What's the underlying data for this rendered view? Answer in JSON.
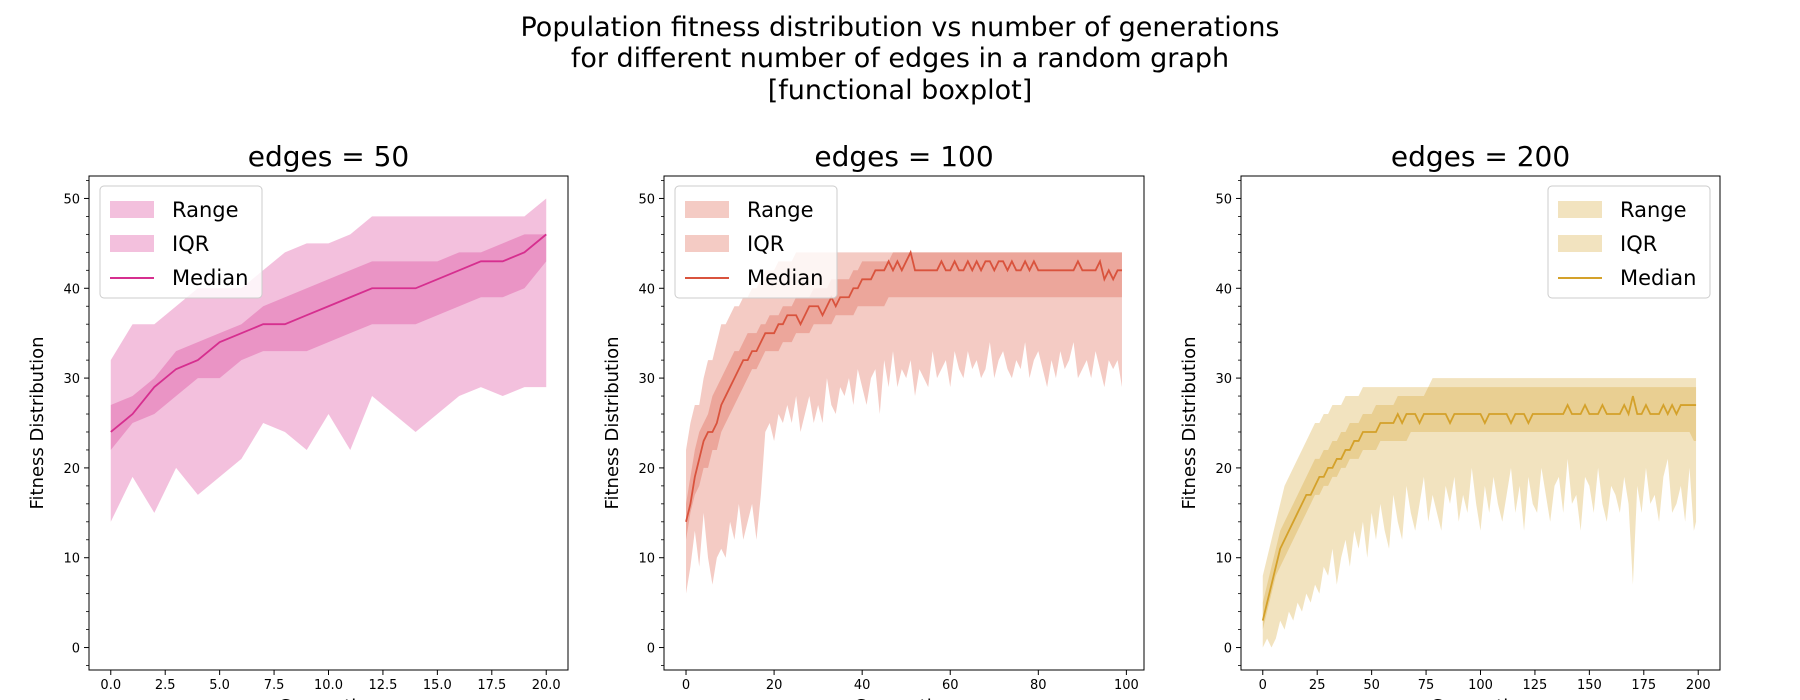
{
  "figure": {
    "suptitle_lines": [
      "Population fitness distribution vs number of generations",
      "for different number of edges in a random graph",
      "[functional boxplot]"
    ]
  },
  "chart_data": [
    {
      "type": "area",
      "title": "edges = 50",
      "xlabel": "Generation",
      "ylabel": "Fitness Distribution",
      "xlim": [
        -1,
        21
      ],
      "ylim": [
        -2.5,
        52.5
      ],
      "xticks": [
        0.0,
        2.5,
        5.0,
        7.5,
        10.0,
        12.5,
        15.0,
        17.5,
        20.0
      ],
      "xtick_labels": [
        "0.0",
        "2.5",
        "5.0",
        "7.5",
        "10.0",
        "12.5",
        "15.0",
        "17.5",
        "20.0"
      ],
      "yticks": [
        0,
        10,
        20,
        30,
        40,
        50
      ],
      "legend": {
        "position": "top-left",
        "entries": [
          "Range",
          "IQR",
          "Median"
        ]
      },
      "color": "#d62f8f",
      "x": [
        0,
        1,
        2,
        3,
        4,
        5,
        6,
        7,
        8,
        9,
        10,
        11,
        12,
        13,
        14,
        15,
        16,
        17,
        18,
        19,
        20
      ],
      "range_min": [
        14,
        19,
        15,
        20,
        17,
        19,
        21,
        25,
        24,
        22,
        26,
        22,
        28,
        26,
        24,
        26,
        28,
        29,
        28,
        29,
        29
      ],
      "range_max": [
        32,
        36,
        36,
        38,
        40,
        40,
        40,
        42,
        44,
        45,
        45,
        46,
        48,
        48,
        48,
        48,
        48,
        48,
        48,
        48,
        50
      ],
      "iqr_low": [
        22,
        25,
        26,
        28,
        30,
        30,
        32,
        33,
        33,
        33,
        34,
        35,
        36,
        36,
        36,
        37,
        38,
        39,
        39,
        40,
        43
      ],
      "iqr_high": [
        27,
        28,
        30,
        33,
        34,
        35,
        36,
        38,
        39,
        40,
        41,
        42,
        43,
        43,
        43,
        43,
        44,
        44,
        45,
        46,
        46
      ],
      "median": [
        24,
        26,
        29,
        31,
        32,
        34,
        35,
        36,
        36,
        37,
        38,
        39,
        40,
        40,
        40,
        41,
        42,
        43,
        43,
        44,
        46
      ]
    },
    {
      "type": "area",
      "title": "edges = 100",
      "xlabel": "Generation",
      "ylabel": "Fitness Distribution",
      "xlim": [
        -5,
        104
      ],
      "ylim": [
        -2.5,
        52.5
      ],
      "xticks": [
        0,
        20,
        40,
        60,
        80,
        100
      ],
      "xtick_labels": [
        "0",
        "20",
        "40",
        "60",
        "80",
        "100"
      ],
      "yticks": [
        0,
        10,
        20,
        30,
        40,
        50
      ],
      "legend": {
        "position": "top-left",
        "entries": [
          "Range",
          "IQR",
          "Median"
        ]
      },
      "color": "#d9533d",
      "x": [
        0,
        1,
        2,
        3,
        4,
        5,
        6,
        7,
        8,
        9,
        10,
        11,
        12,
        13,
        14,
        15,
        16,
        17,
        18,
        19,
        20,
        21,
        22,
        23,
        24,
        25,
        26,
        27,
        28,
        29,
        30,
        31,
        32,
        33,
        34,
        35,
        36,
        37,
        38,
        39,
        40,
        41,
        42,
        43,
        44,
        45,
        46,
        47,
        48,
        49,
        50,
        51,
        52,
        53,
        54,
        55,
        56,
        57,
        58,
        59,
        60,
        61,
        62,
        63,
        64,
        65,
        66,
        67,
        68,
        69,
        70,
        71,
        72,
        73,
        74,
        75,
        76,
        77,
        78,
        79,
        80,
        81,
        82,
        83,
        84,
        85,
        86,
        87,
        88,
        89,
        90,
        91,
        92,
        93,
        94,
        95,
        96,
        97,
        98,
        99
      ],
      "range_min": [
        6,
        9,
        13,
        9,
        15,
        10,
        7,
        10,
        11,
        10,
        14,
        12,
        16,
        12,
        14,
        16,
        12,
        17,
        24,
        25,
        23,
        26,
        25,
        27,
        25,
        28,
        24,
        26,
        28,
        25,
        27,
        25,
        30,
        27,
        26,
        29,
        28,
        30,
        27,
        31,
        29,
        27,
        30,
        31,
        26,
        32,
        29,
        33,
        29,
        31,
        30,
        32,
        28,
        31,
        30,
        29,
        33,
        30,
        31,
        32,
        29,
        33,
        31,
        30,
        33,
        31,
        32,
        30,
        31,
        34,
        30,
        32,
        33,
        31,
        30,
        32,
        31,
        34,
        30,
        32,
        33,
        31,
        29,
        32,
        30,
        33,
        31,
        32,
        34,
        30,
        31,
        32,
        30,
        33,
        31,
        29,
        32,
        31,
        32,
        29
      ],
      "range_max": [
        22,
        25,
        27,
        27,
        30,
        32,
        32,
        34,
        36,
        36,
        37,
        38,
        38,
        39,
        39,
        40,
        40,
        41,
        42,
        42,
        42,
        43,
        43,
        43,
        43,
        44,
        44,
        44,
        44,
        44,
        44,
        44,
        44,
        44,
        44,
        44,
        44,
        44,
        44,
        44,
        44,
        44,
        44,
        44,
        44,
        44,
        44,
        44,
        44,
        44,
        44,
        44,
        44,
        44,
        44,
        44,
        44,
        44,
        44,
        44,
        44,
        44,
        44,
        44,
        44,
        44,
        44,
        44,
        44,
        44,
        44,
        44,
        44,
        44,
        44,
        44,
        44,
        44,
        44,
        44,
        44,
        44,
        44,
        44,
        44,
        44,
        44,
        44,
        44,
        44,
        44,
        44,
        44,
        44,
        44,
        44,
        44,
        44,
        44,
        44
      ],
      "iqr_low": [
        12,
        15,
        17,
        18,
        20,
        20,
        22,
        22,
        24,
        25,
        26,
        27,
        28,
        29,
        30,
        31,
        31,
        32,
        33,
        33,
        33,
        33,
        34,
        34,
        34,
        35,
        35,
        35,
        35,
        36,
        36,
        36,
        36,
        36,
        37,
        37,
        37,
        37,
        37,
        38,
        38,
        38,
        38,
        38,
        38,
        38,
        39,
        39,
        39,
        39,
        39,
        39,
        39,
        39,
        39,
        39,
        39,
        39,
        39,
        39,
        39,
        39,
        39,
        39,
        39,
        39,
        39,
        39,
        39,
        39,
        39,
        39,
        39,
        39,
        39,
        39,
        39,
        39,
        39,
        39,
        39,
        39,
        39,
        39,
        39,
        39,
        39,
        39,
        39,
        39,
        39,
        39,
        39,
        39,
        39,
        39,
        39,
        39,
        39,
        39
      ],
      "iqr_high": [
        16,
        19,
        22,
        24,
        25,
        26,
        28,
        29,
        30,
        31,
        32,
        33,
        33,
        34,
        35,
        35,
        35,
        36,
        36,
        37,
        37,
        37,
        38,
        38,
        38,
        39,
        39,
        39,
        39,
        40,
        40,
        40,
        40,
        41,
        41,
        41,
        41,
        41,
        42,
        42,
        43,
        43,
        43,
        43,
        43,
        43,
        43,
        44,
        44,
        44,
        44,
        44,
        44,
        44,
        44,
        44,
        44,
        44,
        44,
        44,
        44,
        44,
        44,
        44,
        44,
        44,
        44,
        44,
        44,
        44,
        44,
        44,
        44,
        44,
        44,
        44,
        44,
        44,
        44,
        44,
        44,
        44,
        44,
        44,
        44,
        44,
        44,
        44,
        44,
        44,
        44,
        44,
        44,
        44,
        44,
        44,
        44,
        44,
        44,
        44
      ],
      "median": [
        14,
        16,
        19,
        21,
        23,
        24,
        24,
        25,
        27,
        28,
        29,
        30,
        31,
        32,
        32,
        33,
        33,
        34,
        35,
        35,
        35,
        36,
        36,
        37,
        37,
        37,
        36,
        37,
        38,
        38,
        38,
        37,
        38,
        39,
        38,
        39,
        39,
        39,
        40,
        40,
        41,
        41,
        41,
        42,
        42,
        42,
        43,
        42,
        43,
        42,
        43,
        44,
        42,
        42,
        42,
        42,
        42,
        42,
        43,
        42,
        42,
        43,
        42,
        42,
        43,
        42,
        43,
        42,
        43,
        43,
        42,
        43,
        43,
        42,
        43,
        42,
        42,
        43,
        42,
        43,
        42,
        42,
        42,
        42,
        42,
        42,
        42,
        42,
        42,
        43,
        42,
        42,
        42,
        42,
        43,
        41,
        42,
        41,
        42,
        42
      ]
    },
    {
      "type": "area",
      "title": "edges = 200",
      "xlabel": "Generation",
      "ylabel": "Fitness Distribution",
      "xlim": [
        -10,
        210
      ],
      "ylim": [
        -2.5,
        52.5
      ],
      "xticks": [
        0,
        25,
        50,
        75,
        100,
        125,
        150,
        175,
        200
      ],
      "xtick_labels": [
        "0",
        "25",
        "50",
        "75",
        "100",
        "125",
        "150",
        "175",
        "200"
      ],
      "yticks": [
        0,
        10,
        20,
        30,
        40,
        50
      ],
      "legend": {
        "position": "top-right",
        "entries": [
          "Range",
          "IQR",
          "Median"
        ]
      },
      "color": "#d4a12a",
      "x": [
        0,
        2,
        4,
        6,
        8,
        10,
        12,
        14,
        16,
        18,
        20,
        22,
        24,
        26,
        28,
        30,
        32,
        34,
        36,
        38,
        40,
        42,
        44,
        46,
        48,
        50,
        52,
        54,
        56,
        58,
        60,
        62,
        64,
        66,
        68,
        70,
        72,
        74,
        76,
        78,
        80,
        82,
        84,
        86,
        88,
        90,
        92,
        94,
        96,
        98,
        100,
        102,
        104,
        106,
        108,
        110,
        112,
        114,
        116,
        118,
        120,
        122,
        124,
        126,
        128,
        130,
        132,
        134,
        136,
        138,
        140,
        142,
        144,
        146,
        148,
        150,
        152,
        154,
        156,
        158,
        160,
        162,
        164,
        166,
        168,
        170,
        172,
        174,
        176,
        178,
        180,
        182,
        184,
        186,
        188,
        190,
        192,
        194,
        196,
        198,
        199
      ],
      "range_min": [
        0,
        1,
        0,
        1,
        3,
        2,
        4,
        3,
        5,
        4,
        6,
        5,
        7,
        6,
        9,
        8,
        11,
        7,
        10,
        12,
        9,
        13,
        11,
        14,
        10,
        15,
        12,
        16,
        13,
        11,
        17,
        14,
        12,
        18,
        15,
        13,
        16,
        19,
        14,
        17,
        15,
        13,
        18,
        16,
        19,
        14,
        17,
        15,
        20,
        16,
        13,
        18,
        15,
        19,
        16,
        14,
        17,
        20,
        15,
        18,
        13,
        19,
        16,
        15,
        20,
        17,
        14,
        18,
        19,
        15,
        21,
        16,
        17,
        13,
        19,
        18,
        15,
        20,
        16,
        14,
        18,
        17,
        15,
        19,
        16,
        7,
        18,
        15,
        20,
        16,
        17,
        14,
        19,
        21,
        15,
        16,
        18,
        14,
        20,
        13,
        14
      ],
      "range_max": [
        8,
        10,
        12,
        14,
        16,
        18,
        19,
        20,
        21,
        22,
        23,
        24,
        25,
        25,
        26,
        26,
        27,
        27,
        27,
        28,
        28,
        28,
        28,
        29,
        29,
        29,
        29,
        29,
        29,
        29,
        29,
        29,
        29,
        29,
        29,
        29,
        29,
        29,
        29,
        30,
        30,
        30,
        30,
        30,
        30,
        30,
        30,
        30,
        30,
        30,
        30,
        30,
        30,
        30,
        30,
        30,
        30,
        30,
        30,
        30,
        30,
        30,
        30,
        30,
        30,
        30,
        30,
        30,
        30,
        30,
        30,
        30,
        30,
        30,
        30,
        30,
        30,
        30,
        30,
        30,
        30,
        30,
        30,
        30,
        30,
        30,
        30,
        30,
        30,
        30,
        30,
        30,
        30,
        30,
        30,
        30,
        30,
        30,
        30,
        30,
        30
      ],
      "iqr_low": [
        2,
        4,
        6,
        8,
        9,
        10,
        11,
        12,
        13,
        14,
        15,
        16,
        17,
        17,
        18,
        18,
        19,
        19,
        20,
        20,
        21,
        21,
        21,
        22,
        22,
        22,
        22,
        23,
        23,
        23,
        23,
        23,
        23,
        23,
        24,
        24,
        24,
        24,
        24,
        24,
        24,
        24,
        24,
        24,
        24,
        24,
        24,
        24,
        24,
        24,
        24,
        24,
        24,
        24,
        24,
        24,
        24,
        24,
        24,
        24,
        24,
        24,
        24,
        24,
        24,
        24,
        24,
        24,
        24,
        24,
        24,
        24,
        24,
        24,
        24,
        24,
        24,
        24,
        24,
        24,
        24,
        24,
        24,
        24,
        24,
        24,
        24,
        24,
        24,
        24,
        24,
        24,
        24,
        24,
        24,
        24,
        24,
        24,
        24,
        23,
        23
      ],
      "iqr_high": [
        5,
        7,
        9,
        11,
        13,
        14,
        15,
        16,
        17,
        18,
        19,
        20,
        21,
        21,
        22,
        22,
        23,
        23,
        24,
        24,
        25,
        25,
        25,
        26,
        26,
        26,
        27,
        27,
        27,
        27,
        27,
        28,
        28,
        28,
        28,
        28,
        28,
        28,
        29,
        29,
        29,
        29,
        29,
        29,
        29,
        29,
        29,
        29,
        29,
        29,
        29,
        29,
        29,
        29,
        29,
        29,
        29,
        29,
        29,
        29,
        29,
        29,
        29,
        29,
        29,
        29,
        29,
        29,
        29,
        29,
        29,
        29,
        29,
        29,
        29,
        29,
        29,
        29,
        29,
        29,
        29,
        29,
        29,
        29,
        29,
        29,
        29,
        29,
        29,
        29,
        29,
        29,
        29,
        29,
        29,
        29,
        29,
        29,
        29,
        29,
        29
      ],
      "median": [
        3,
        5,
        7,
        9,
        11,
        12,
        13,
        14,
        15,
        16,
        17,
        17,
        18,
        19,
        19,
        20,
        20,
        21,
        21,
        22,
        22,
        23,
        23,
        24,
        24,
        24,
        24,
        25,
        25,
        25,
        25,
        26,
        25,
        26,
        26,
        26,
        25,
        26,
        26,
        26,
        26,
        26,
        26,
        25,
        26,
        26,
        26,
        26,
        26,
        26,
        26,
        25,
        26,
        26,
        26,
        26,
        26,
        25,
        26,
        26,
        26,
        25,
        26,
        26,
        26,
        26,
        26,
        26,
        26,
        26,
        27,
        26,
        26,
        26,
        27,
        26,
        26,
        26,
        27,
        26,
        26,
        26,
        26,
        27,
        26,
        28,
        26,
        26,
        27,
        26,
        26,
        26,
        27,
        26,
        27,
        26,
        27,
        27,
        27,
        27,
        27
      ]
    }
  ]
}
